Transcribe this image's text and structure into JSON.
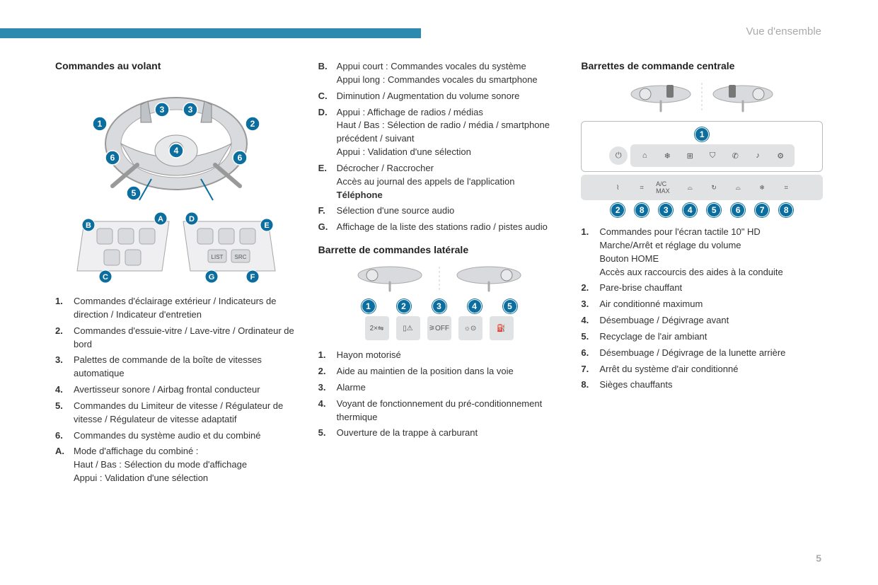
{
  "header": {
    "section": "Vue d'ensemble",
    "page": "5"
  },
  "accent_color": "#0b6e9e",
  "top_bar_color": "#2b8aad",
  "col1": {
    "title": "Commandes au volant",
    "wheel_badges": [
      "1",
      "2",
      "3",
      "4",
      "5",
      "6"
    ],
    "wheel_letters": [
      "A",
      "B",
      "C",
      "D",
      "E",
      "F",
      "G"
    ],
    "list_num": [
      {
        "n": "1.",
        "t": "Commandes d'éclairage extérieur / Indicateurs de direction / Indicateur d'entretien"
      },
      {
        "n": "2.",
        "t": "Commandes d'essuie-vitre / Lave-vitre / Ordinateur de bord"
      },
      {
        "n": "3.",
        "t": "Palettes de commande de la boîte de vitesses automatique"
      },
      {
        "n": "4.",
        "t": "Avertisseur sonore / Airbag frontal conducteur"
      },
      {
        "n": "5.",
        "t": "Commandes du Limiteur de vitesse / Régulateur de vitesse / Régulateur de vitesse adaptatif"
      },
      {
        "n": "6.",
        "t": "Commandes du système audio et du combiné"
      }
    ],
    "list_letter_A": {
      "n": "A.",
      "l1": "Mode d'affichage du combiné :",
      "l2": "Haut / Bas : Sélection du mode d'affichage",
      "l3": "Appui : Validation d'une sélection"
    }
  },
  "col2": {
    "list_letter": [
      {
        "n": "B.",
        "lines": [
          "Appui court : Commandes vocales du système",
          "Appui long : Commandes vocales du smartphone"
        ]
      },
      {
        "n": "C.",
        "lines": [
          "Diminution / Augmentation du volume sonore"
        ]
      },
      {
        "n": "D.",
        "lines": [
          "Appui : Affichage de radios / médias",
          "Haut / Bas : Sélection de radio / média / smartphone précédent / suivant",
          "Appui : Validation d'une sélection"
        ]
      },
      {
        "n": "E.",
        "lines": [
          "Décrocher / Raccrocher",
          "Accès au journal des appels de l'application"
        ],
        "bold_trail": "Téléphone"
      },
      {
        "n": "F.",
        "lines": [
          "Sélection d'une source audio"
        ]
      },
      {
        "n": "G.",
        "lines": [
          "Affichage de la liste des stations radio / pistes audio"
        ]
      }
    ],
    "subtitle": "Barrette de commandes latérale",
    "lateral": {
      "badges": [
        "1",
        "2",
        "3",
        "4",
        "5"
      ],
      "icons": [
        "2×⇋",
        "▯⚠",
        "⚞OFF",
        "☼⊙",
        "⛽"
      ]
    },
    "list_lateral": [
      {
        "n": "1.",
        "t": "Hayon motorisé"
      },
      {
        "n": "2.",
        "t": "Aide au maintien de la position dans la voie"
      },
      {
        "n": "3.",
        "t": "Alarme"
      },
      {
        "n": "4.",
        "t": "Voyant de fonctionnement du pré-conditionnement thermique"
      },
      {
        "n": "5.",
        "t": "Ouverture de la trappe à carburant"
      }
    ]
  },
  "col3": {
    "title": "Barrettes de commande centrale",
    "top_bar": {
      "badge": "1",
      "icons": [
        "⌂",
        "❄",
        "⊞",
        "⛉",
        "✆",
        "♪",
        "⚙"
      ],
      "power": "⏻"
    },
    "bottom_bar": {
      "icons": [
        "⌇",
        "⌗",
        "A/C MAX",
        "⌓",
        "↻",
        "⌓",
        "❄",
        "⌗"
      ],
      "badges": [
        "2",
        "8",
        "3",
        "4",
        "5",
        "6",
        "7",
        "8"
      ]
    },
    "list": [
      {
        "n": "1.",
        "lines": [
          "Commandes pour l'écran tactile 10\" HD",
          "Marche/Arrêt et réglage du volume",
          "Bouton HOME",
          "Accès aux raccourcis des aides à la conduite"
        ]
      },
      {
        "n": "2.",
        "lines": [
          "Pare-brise chauffant"
        ]
      },
      {
        "n": "3.",
        "lines": [
          "Air conditionné maximum"
        ]
      },
      {
        "n": "4.",
        "lines": [
          "Désembuage / Dégivrage avant"
        ]
      },
      {
        "n": "5.",
        "lines": [
          "Recyclage de l'air ambiant"
        ]
      },
      {
        "n": "6.",
        "lines": [
          "Désembuage / Dégivrage de la lunette arrière"
        ]
      },
      {
        "n": "7.",
        "lines": [
          "Arrêt du système d'air conditionné"
        ]
      },
      {
        "n": "8.",
        "lines": [
          "Sièges chauffants"
        ]
      }
    ]
  }
}
